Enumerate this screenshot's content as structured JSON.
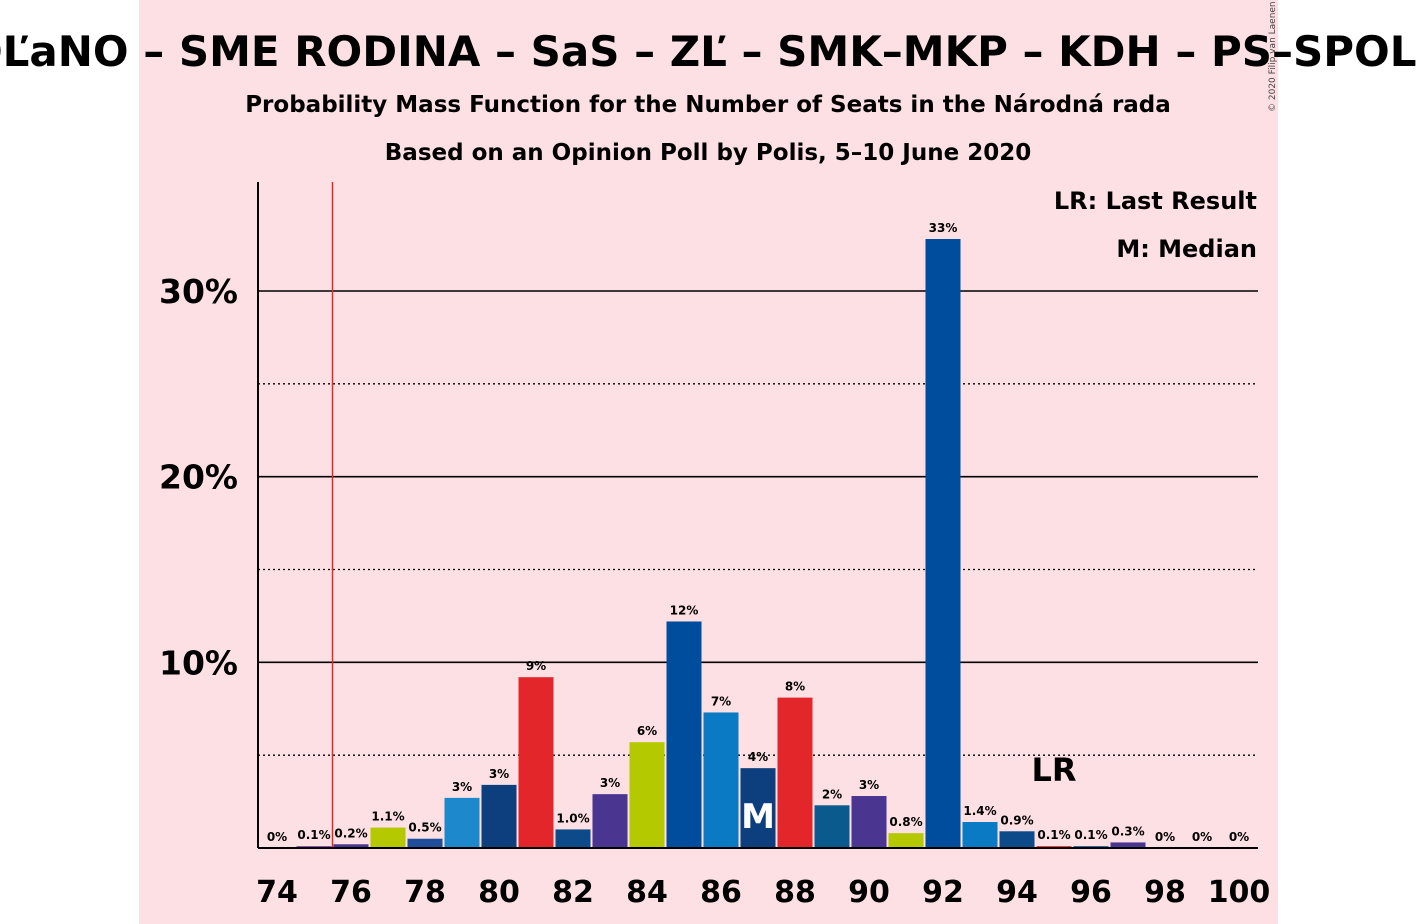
{
  "colors": {
    "panel": "#fde0e3",
    "last_result_line": "#e5262a",
    "grid": "#000000"
  },
  "chart_data": {
    "type": "bar",
    "title": "OĽaNO – SME RODINA – SaS – ZĽ – SMK–MKP – KDH – PS–SPOLU",
    "subtitle": "Probability Mass Function for the Number of Seats in the Národná rada",
    "subtitle2": "Based on an Opinion Poll by Polis, 5–10 June 2020",
    "copyright": "© 2020 Filip van Laenen",
    "xlabel": "",
    "ylabel": "",
    "x": [
      74,
      75,
      76,
      77,
      78,
      79,
      80,
      81,
      82,
      83,
      84,
      85,
      86,
      87,
      88,
      89,
      90,
      91,
      92,
      93,
      94,
      95,
      96,
      97,
      98,
      99,
      100
    ],
    "values": [
      0,
      0.1,
      0.2,
      1.1,
      0.5,
      2.7,
      3.4,
      9.2,
      1.0,
      2.9,
      5.7,
      12.2,
      7.3,
      4.3,
      8.1,
      2.3,
      2.8,
      0.8,
      32.8,
      1.4,
      0.9,
      0.1,
      0.1,
      0.3,
      0,
      0,
      0
    ],
    "labels": [
      "0%",
      "0.1%",
      "0.2%",
      "1.1%",
      "0.5%",
      "3%",
      "3%",
      "9%",
      "1.0%",
      "3%",
      "6%",
      "12%",
      "7%",
      "4%",
      "8%",
      "2%",
      "3%",
      "0.8%",
      "33%",
      "1.4%",
      "0.9%",
      "0.1%",
      "0.1%",
      "0.3%",
      "0%",
      "0%",
      "0%"
    ],
    "bar_colors": [
      "#1f4e9a",
      "#7a3fa0",
      "#4a3591",
      "#b5c900",
      "#1f4e9a",
      "#1d88cb",
      "#0d3f7f",
      "#e3262a",
      "#0d4a8a",
      "#4a3591",
      "#b5c900",
      "#004d9e",
      "#0a7ac4",
      "#0d3f7f",
      "#e3262a",
      "#0b5a8e",
      "#4a3591",
      "#b5c900",
      "#004d9e",
      "#0a7ac4",
      "#0d4a8a",
      "#e3262a",
      "#0b5a8e",
      "#4a3591",
      "#b5c900",
      "#004d9e",
      "#0a7ac4"
    ],
    "x_tick_labels": [
      "74",
      "76",
      "78",
      "80",
      "82",
      "84",
      "86",
      "88",
      "90",
      "92",
      "94",
      "96",
      "98",
      "100"
    ],
    "x_tick_values": [
      74,
      76,
      78,
      80,
      82,
      84,
      86,
      88,
      90,
      92,
      94,
      96,
      98,
      100
    ],
    "y_ticks": [
      10,
      20,
      30
    ],
    "y_tick_labels": [
      "10%",
      "20%",
      "30%"
    ],
    "y_minor_ticks": [
      5,
      15,
      25
    ],
    "ylim": [
      0,
      36
    ],
    "last_result": 75.5,
    "last_result_label": "LR",
    "last_result_label_x": 95,
    "median": 87,
    "median_label": "M",
    "legend": [
      "LR: Last Result",
      "M: Median"
    ],
    "legend_position": "top-right"
  }
}
